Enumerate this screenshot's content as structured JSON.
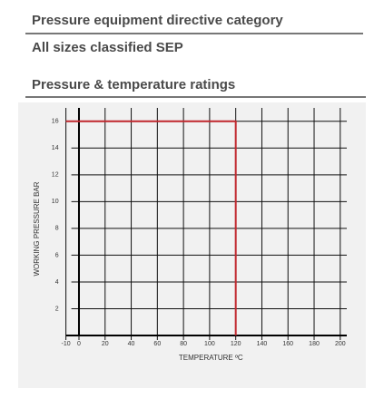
{
  "sections": [
    {
      "title": "Pressure equipment directive category",
      "text": "All sizes classified SEP"
    },
    {
      "title": "Pressure & temperature ratings"
    }
  ],
  "chart_data": {
    "type": "line",
    "x_label": "TEMPERATURE ºC",
    "y_label": "WORKING PRESSURE BAR",
    "x": [
      -10,
      120,
      120
    ],
    "values": [
      16,
      16,
      0
    ],
    "color": "#c0272d",
    "xlim": [
      -10,
      205
    ],
    "ylim": [
      0,
      17
    ],
    "xticks": [
      -10,
      0,
      20,
      40,
      60,
      80,
      100,
      120,
      140,
      160,
      180,
      200
    ],
    "yticks": [
      2,
      4,
      6,
      8,
      10,
      12,
      14,
      16
    ],
    "grid": true
  }
}
